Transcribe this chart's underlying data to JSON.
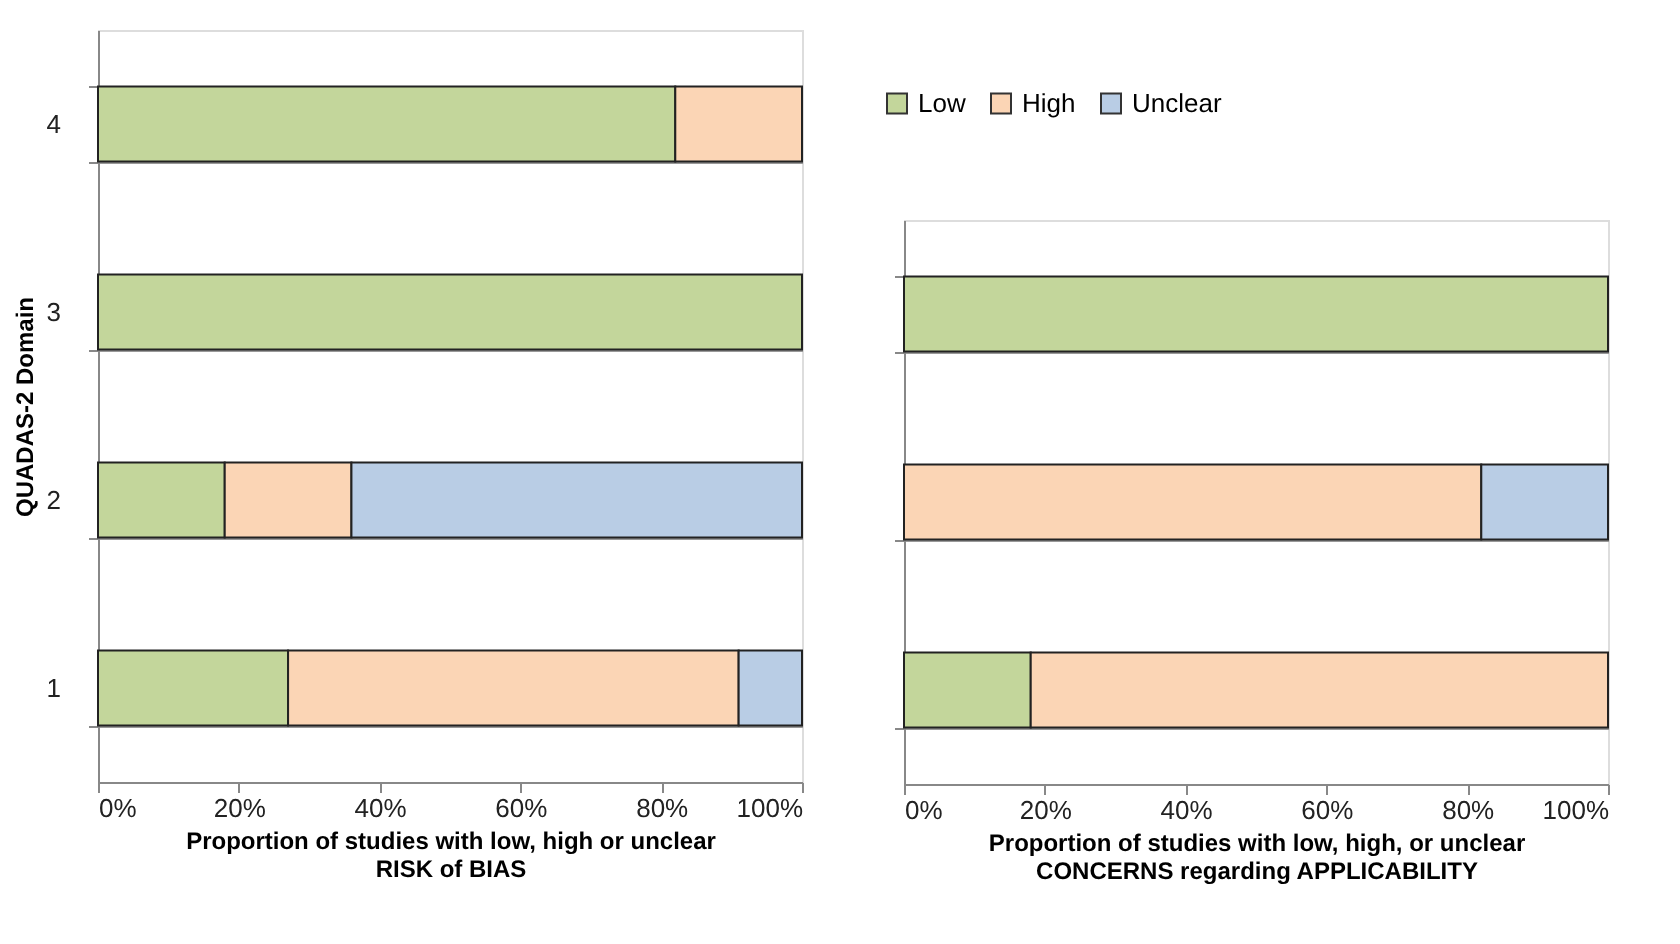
{
  "chart_data": [
    {
      "type": "bar",
      "orientation": "horizontal",
      "stacked": true,
      "categories": [
        "4",
        "3",
        "2",
        "1"
      ],
      "ylabel": "QUADAS-2  Domain",
      "xlabel": "Proportion  of studies with low, high or unclear\nRISK of BIAS",
      "series": [
        {
          "color": "#c3d69b",
          "values": [
            82,
            100,
            18,
            27
          ]
        },
        {
          "color": "#fbd5b5",
          "values": [
            18,
            null,
            18,
            64
          ]
        },
        {
          "color": "#b9cde5",
          "values": [
            null,
            null,
            64,
            9
          ]
        }
      ],
      "xlim": [
        0,
        100
      ],
      "xticks": [
        {
          "value": 0,
          "label": "0%"
        },
        {
          "value": 20,
          "label": "20%"
        },
        {
          "value": 40,
          "label": "40%"
        },
        {
          "value": 60,
          "label": "60%"
        },
        {
          "value": 80,
          "label": "80%"
        },
        {
          "value": 100,
          "label": "100%"
        }
      ],
      "grid": "y"
    },
    {
      "type": "bar",
      "orientation": "horizontal",
      "stacked": true,
      "categories": [
        null,
        null,
        null
      ],
      "xlabel": "Proportion  of studies with low, high, or unclear\nCONCERNS regarding APPLICABILITY",
      "series": [
        {
          "name": "Low",
          "color": "#c3d69b",
          "values": [
            100,
            null,
            18
          ]
        },
        {
          "name": "High",
          "color": "#fbd5b5",
          "values": [
            null,
            82,
            82
          ]
        },
        {
          "name": "Unclear",
          "color": "#b9cde5",
          "values": [
            null,
            18,
            null
          ]
        }
      ],
      "xlim": [
        0,
        100
      ],
      "xticks": [
        {
          "value": 0,
          "label": "0%"
        },
        {
          "value": 20,
          "label": "20%"
        },
        {
          "value": 40,
          "label": "40%"
        },
        {
          "value": 60,
          "label": "60%"
        },
        {
          "value": 80,
          "label": "80%"
        },
        {
          "value": 100,
          "label": "100%"
        }
      ],
      "grid": "y",
      "legend": "top left",
      "tick_labels": "x"
    }
  ]
}
